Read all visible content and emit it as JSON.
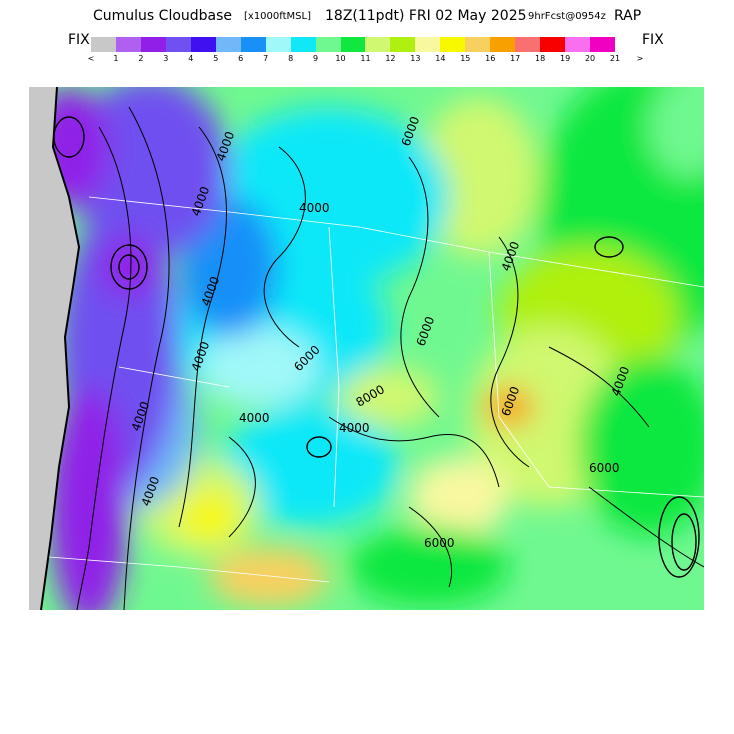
{
  "title": {
    "product": "Cumulus Cloudbase",
    "units": "[x1000ftMSL]",
    "valid": "18Z(11pdt) FRI 02 May 2025",
    "forecast": "9hrFcst@0954z",
    "model": "RAP"
  },
  "legend": {
    "fix_left": "FIX",
    "fix_right": "FIX",
    "colors": [
      "#c8c8c8",
      "#b060f0",
      "#9020e8",
      "#7050f0",
      "#4010f0",
      "#70b8f8",
      "#1890f8",
      "#a0f8f8",
      "#10e8f8",
      "#70f890",
      "#10e840",
      "#d0f870",
      "#b0f010",
      "#f8f8a0",
      "#f8f800",
      "#f8d060",
      "#f8a000",
      "#f87070",
      "#f80000",
      "#f870f0",
      "#f000c0"
    ],
    "ticks": [
      "<",
      "1",
      "2",
      "3",
      "4",
      "5",
      "6",
      "7",
      "8",
      "9",
      "10",
      "11",
      "12",
      "13",
      "14",
      "15",
      "16",
      "17",
      "18",
      "19",
      "20",
      "21",
      ">"
    ]
  },
  "map": {
    "contour_labels": [
      "4000",
      "4000",
      "4000",
      "6000",
      "6000",
      "4000",
      "4000",
      "4000",
      "4000",
      "4000",
      "6000",
      "8000",
      "6000",
      "4000",
      "6000",
      "6000",
      "4000",
      "4000"
    ]
  }
}
